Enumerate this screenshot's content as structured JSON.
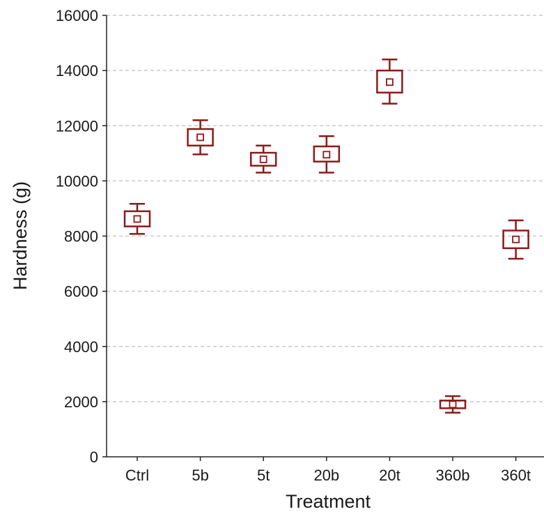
{
  "chart_data": {
    "type": "box",
    "xlabel": "Treatment",
    "ylabel": "Hardness (g)",
    "categories": [
      "Ctrl",
      "5b",
      "5t",
      "20b",
      "20t",
      "360b",
      "360t"
    ],
    "ylim": [
      0,
      16000
    ],
    "yticks": [
      0,
      2000,
      4000,
      6000,
      8000,
      10000,
      12000,
      14000,
      16000
    ],
    "grid": "horizontal dashed",
    "color": "#8b1a1a",
    "series": [
      {
        "mean": [
          8620,
          11580,
          10780,
          10950,
          13580,
          1900,
          7880
        ],
        "box_low": [
          8350,
          11280,
          10550,
          10700,
          13200,
          1760,
          7560
        ],
        "box_high": [
          8900,
          11880,
          11020,
          11250,
          14000,
          2040,
          8200
        ],
        "whisk_low": [
          8080,
          10960,
          10300,
          10300,
          12800,
          1600,
          7180
        ],
        "whisk_high": [
          9170,
          12200,
          11280,
          11620,
          14400,
          2200,
          8570
        ]
      }
    ]
  }
}
